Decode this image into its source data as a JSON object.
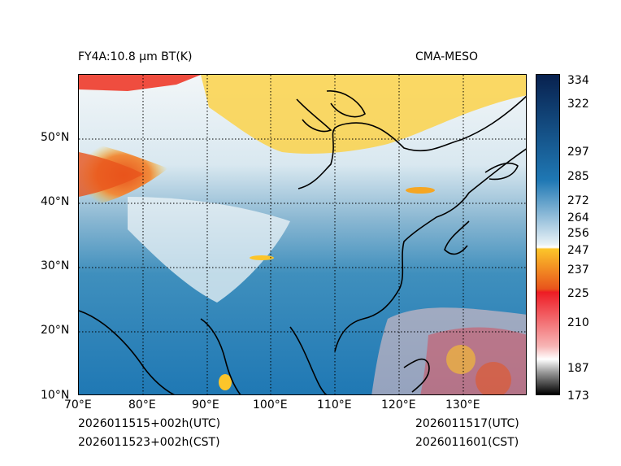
{
  "title_left": "FY4A:10.8 µm BT(K)",
  "title_right": "CMA-MESO",
  "map": {
    "lon_labels": [
      "70°E",
      "80°E",
      "90°E",
      "100°E",
      "110°E",
      "120°E",
      "130°E"
    ],
    "lat_labels": [
      "50°N",
      "40°N",
      "30°N",
      "20°N",
      "10°N"
    ]
  },
  "colorbar": {
    "ticks": [
      "334",
      "322",
      "297",
      "285",
      "272",
      "264",
      "256",
      "247",
      "237",
      "225",
      "210",
      "187",
      "173"
    ],
    "colors": {
      "top": "#08214f",
      "blue": "#1f78b4",
      "light": "#e8f1f6",
      "yellow": "#fcc52a",
      "orange": "#e8541c",
      "red": "#ee1c24",
      "pink": "#f7b6b6",
      "grey": "#9b9b9b",
      "black": "#000000"
    }
  },
  "footer": {
    "left_utc": "2026011515+002h(UTC)",
    "left_cst": "2026011523+002h(CST)",
    "right_utc": "2026011517(UTC)",
    "right_cst": "2026011601(CST)"
  }
}
